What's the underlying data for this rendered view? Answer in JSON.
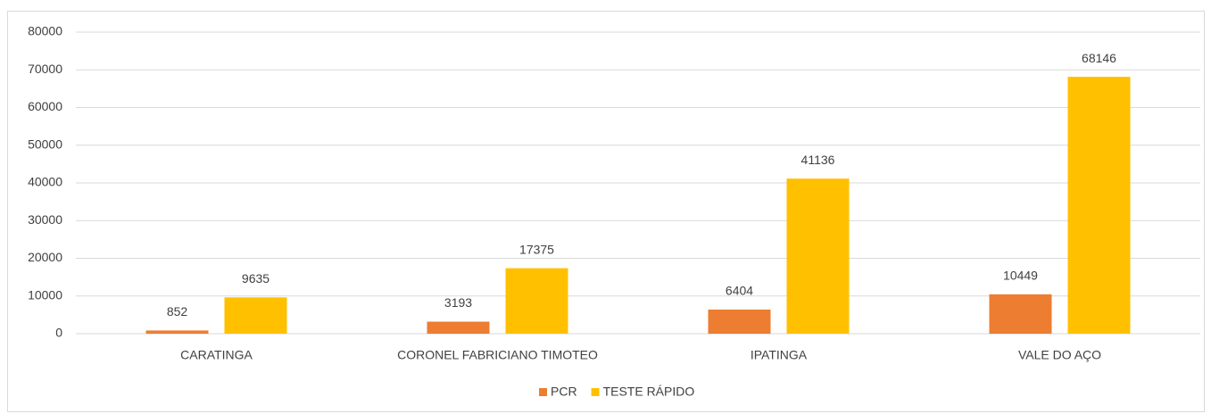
{
  "chart_data": {
    "type": "bar",
    "categories": [
      "CARATINGA",
      "CORONEL FABRICIANO TIMOTEO",
      "IPATINGA",
      "VALE DO AÇO"
    ],
    "series": [
      {
        "name": "PCR",
        "color": "#ed7d31",
        "values": [
          852,
          3193,
          6404,
          10449
        ]
      },
      {
        "name": "TESTE RÁPIDO",
        "color": "#ffc000",
        "values": [
          9635,
          17375,
          41136,
          68146
        ]
      }
    ],
    "ylim": [
      0,
      80000
    ],
    "yticks": [
      0,
      10000,
      20000,
      30000,
      40000,
      50000,
      60000,
      70000,
      80000
    ],
    "grid": true,
    "legend": "bottom"
  }
}
